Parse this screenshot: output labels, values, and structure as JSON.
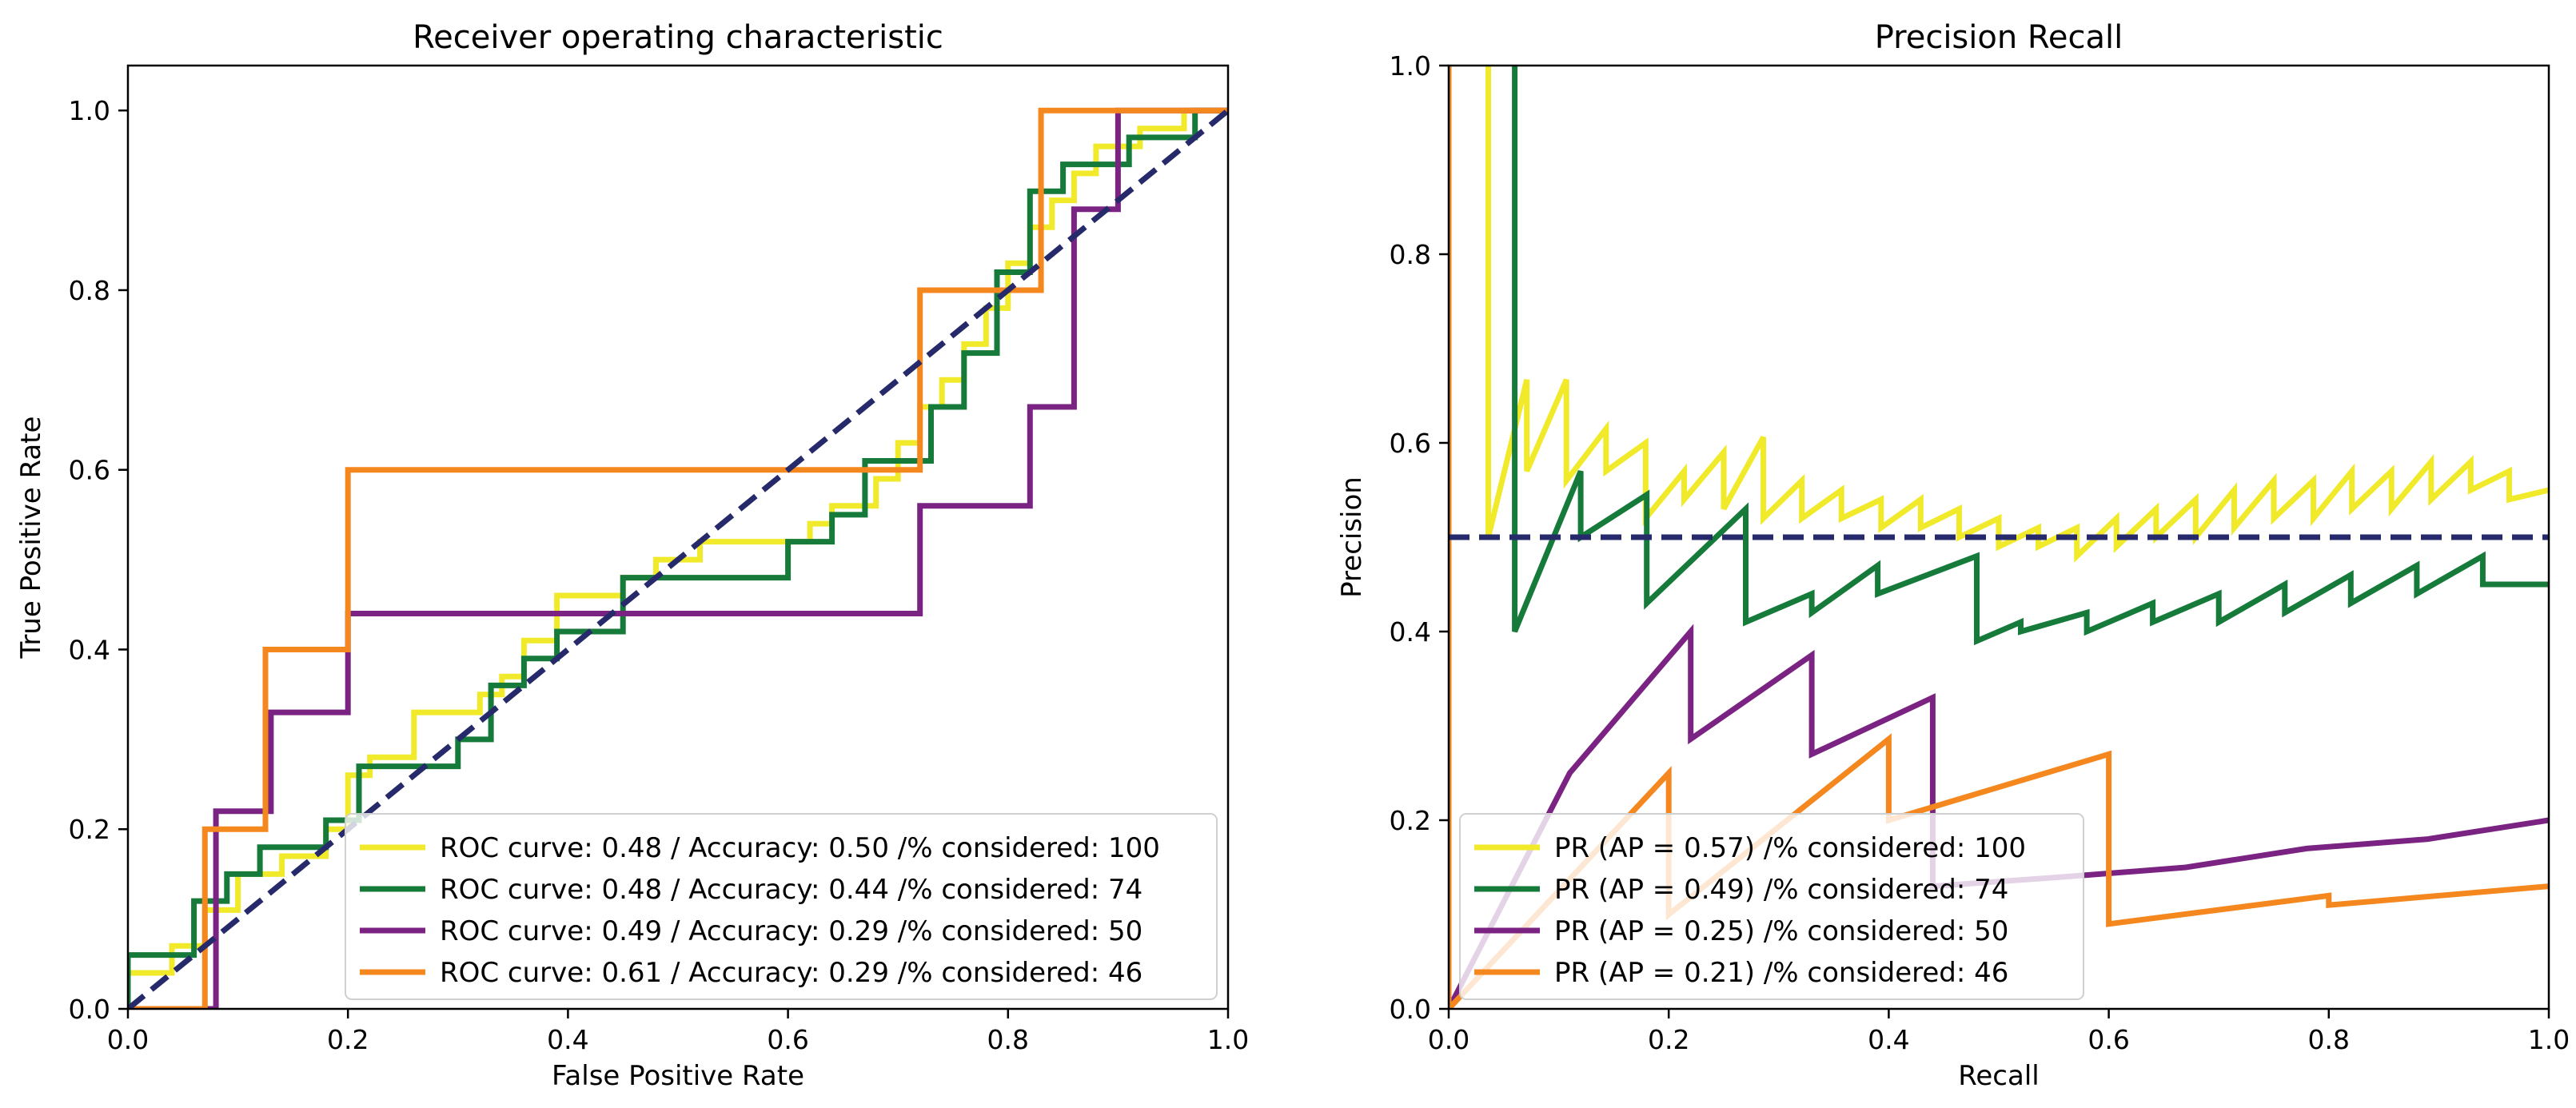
{
  "chart_data": [
    {
      "type": "line",
      "title": "Receiver operating characteristic",
      "xlabel": "False Positive Rate",
      "ylabel": "True Positive Rate",
      "xlim": [
        0.0,
        1.0
      ],
      "ylim": [
        0.0,
        1.05
      ],
      "xticks": [
        "0.0",
        "0.2",
        "0.4",
        "0.6",
        "0.8",
        "1.0"
      ],
      "yticks": [
        "0.0",
        "0.2",
        "0.4",
        "0.6",
        "0.8",
        "1.0"
      ],
      "grid": false,
      "legend_position": "lower-right",
      "reference_line": {
        "name": "chance",
        "color": "#262a6b",
        "style": "dashed",
        "x": [
          0,
          1
        ],
        "y": [
          0,
          1
        ]
      },
      "series": [
        {
          "name": "ROC curve: 0.48 / Accuracy: 0.50 /% considered: 100",
          "color": "#f0ea2a",
          "x": [
            0,
            0,
            0.04,
            0.04,
            0.07,
            0.07,
            0.1,
            0.1,
            0.14,
            0.14,
            0.18,
            0.18,
            0.2,
            0.2,
            0.22,
            0.22,
            0.26,
            0.26,
            0.32,
            0.32,
            0.34,
            0.34,
            0.36,
            0.36,
            0.39,
            0.39,
            0.45,
            0.45,
            0.48,
            0.48,
            0.52,
            0.52,
            0.62,
            0.62,
            0.64,
            0.64,
            0.68,
            0.68,
            0.7,
            0.7,
            0.72,
            0.72,
            0.74,
            0.74,
            0.76,
            0.76,
            0.78,
            0.78,
            0.8,
            0.8,
            0.82,
            0.82,
            0.84,
            0.84,
            0.86,
            0.86,
            0.88,
            0.88,
            0.92,
            0.92,
            0.96,
            0.96,
            1.0
          ],
          "y": [
            0,
            0.04,
            0.04,
            0.07,
            0.07,
            0.11,
            0.11,
            0.15,
            0.15,
            0.17,
            0.17,
            0.2,
            0.2,
            0.26,
            0.26,
            0.28,
            0.28,
            0.33,
            0.33,
            0.35,
            0.35,
            0.37,
            0.37,
            0.41,
            0.41,
            0.46,
            0.46,
            0.48,
            0.48,
            0.5,
            0.5,
            0.52,
            0.52,
            0.54,
            0.54,
            0.56,
            0.56,
            0.59,
            0.59,
            0.63,
            0.63,
            0.67,
            0.67,
            0.7,
            0.7,
            0.74,
            0.74,
            0.78,
            0.78,
            0.83,
            0.83,
            0.87,
            0.87,
            0.9,
            0.9,
            0.93,
            0.93,
            0.96,
            0.96,
            0.98,
            0.98,
            1.0,
            1.0
          ]
        },
        {
          "name": "ROC curve: 0.48 / Accuracy: 0.44 /% considered: 74",
          "color": "#157a3a",
          "x": [
            0,
            0,
            0.06,
            0.06,
            0.09,
            0.09,
            0.12,
            0.12,
            0.18,
            0.18,
            0.21,
            0.21,
            0.3,
            0.3,
            0.33,
            0.33,
            0.36,
            0.36,
            0.39,
            0.39,
            0.45,
            0.45,
            0.6,
            0.6,
            0.64,
            0.64,
            0.67,
            0.67,
            0.73,
            0.73,
            0.76,
            0.76,
            0.79,
            0.79,
            0.82,
            0.82,
            0.85,
            0.85,
            0.91,
            0.91,
            0.97,
            0.97,
            1.0
          ],
          "y": [
            0,
            0.06,
            0.06,
            0.12,
            0.12,
            0.15,
            0.15,
            0.18,
            0.18,
            0.21,
            0.21,
            0.27,
            0.27,
            0.3,
            0.3,
            0.36,
            0.36,
            0.39,
            0.39,
            0.42,
            0.42,
            0.48,
            0.48,
            0.52,
            0.52,
            0.55,
            0.55,
            0.61,
            0.61,
            0.67,
            0.67,
            0.73,
            0.73,
            0.82,
            0.82,
            0.91,
            0.91,
            0.94,
            0.94,
            0.97,
            0.97,
            1.0,
            1.0
          ]
        },
        {
          "name": "ROC curve: 0.49 / Accuracy: 0.29 /% considered: 50",
          "color": "#7a2382",
          "x": [
            0,
            0.08,
            0.08,
            0.13,
            0.13,
            0.2,
            0.2,
            0.72,
            0.72,
            0.82,
            0.82,
            0.86,
            0.86,
            0.9,
            0.9,
            1.0,
            1.0
          ],
          "y": [
            0,
            0,
            0.22,
            0.22,
            0.33,
            0.33,
            0.44,
            0.44,
            0.56,
            0.56,
            0.67,
            0.67,
            0.89,
            0.89,
            1.0,
            1.0,
            1.0
          ],
          "note": "curve rises from 0.56 to 1.0 between x=0.82 and x=0.90"
        },
        {
          "name": "ROC curve: 0.61 / Accuracy: 0.29 /% considered: 46",
          "color": "#f5871f",
          "x": [
            0,
            0.07,
            0.07,
            0.125,
            0.125,
            0.2,
            0.2,
            0.72,
            0.72,
            0.83,
            0.83,
            1.0
          ],
          "y": [
            0,
            0,
            0.2,
            0.2,
            0.4,
            0.4,
            0.6,
            0.6,
            0.8,
            0.8,
            1.0,
            1.0
          ]
        }
      ]
    },
    {
      "type": "line",
      "title": "Precision Recall",
      "xlabel": "Recall",
      "ylabel": "Precision",
      "xlim": [
        0.0,
        1.0
      ],
      "ylim": [
        0.0,
        1.0
      ],
      "xticks": [
        "0.0",
        "0.2",
        "0.4",
        "0.6",
        "0.8",
        "1.0"
      ],
      "yticks": [
        "0.0",
        "0.2",
        "0.4",
        "0.6",
        "0.8",
        "1.0"
      ],
      "grid": false,
      "legend_position": "lower-left",
      "reference_line": {
        "name": "baseline",
        "color": "#262a6b",
        "style": "dashed",
        "x": [
          0,
          1
        ],
        "y": [
          0.5,
          0.5
        ]
      },
      "series": [
        {
          "name": "PR (AP = 0.57) /% considered: 100",
          "color": "#f0ea2a",
          "x": [
            0.036,
            0.036,
            0.071,
            0.071,
            0.107,
            0.107,
            0.143,
            0.143,
            0.179,
            0.179,
            0.214,
            0.214,
            0.25,
            0.25,
            0.286,
            0.286,
            0.321,
            0.321,
            0.357,
            0.357,
            0.393,
            0.393,
            0.429,
            0.429,
            0.464,
            0.464,
            0.5,
            0.5,
            0.536,
            0.536,
            0.571,
            0.571,
            0.607,
            0.607,
            0.643,
            0.643,
            0.679,
            0.679,
            0.714,
            0.714,
            0.75,
            0.75,
            0.786,
            0.786,
            0.821,
            0.821,
            0.857,
            0.857,
            0.893,
            0.893,
            0.929,
            0.929,
            0.964,
            0.964,
            1.0
          ],
          "y": [
            1.0,
            0.5,
            0.667,
            0.57,
            0.667,
            0.56,
            0.615,
            0.57,
            0.6,
            0.52,
            0.57,
            0.54,
            0.59,
            0.53,
            0.606,
            0.52,
            0.56,
            0.52,
            0.55,
            0.52,
            0.54,
            0.51,
            0.54,
            0.51,
            0.53,
            0.5,
            0.52,
            0.49,
            0.51,
            0.49,
            0.51,
            0.48,
            0.52,
            0.49,
            0.53,
            0.5,
            0.54,
            0.5,
            0.55,
            0.51,
            0.56,
            0.52,
            0.56,
            0.52,
            0.57,
            0.53,
            0.57,
            0.53,
            0.58,
            0.54,
            0.58,
            0.55,
            0.57,
            0.54,
            0.55
          ]
        },
        {
          "name": "PR (AP = 0.49) /% considered: 74",
          "color": "#157a3a",
          "x": [
            0.06,
            0.06,
            0.12,
            0.12,
            0.18,
            0.18,
            0.27,
            0.27,
            0.33,
            0.33,
            0.39,
            0.39,
            0.48,
            0.48,
            0.52,
            0.52,
            0.58,
            0.58,
            0.64,
            0.64,
            0.7,
            0.7,
            0.76,
            0.76,
            0.82,
            0.82,
            0.88,
            0.88,
            0.94,
            0.94,
            1.0
          ],
          "y": [
            1.0,
            0.4,
            0.57,
            0.5,
            0.545,
            0.43,
            0.53,
            0.41,
            0.44,
            0.42,
            0.47,
            0.44,
            0.48,
            0.39,
            0.41,
            0.4,
            0.42,
            0.4,
            0.43,
            0.41,
            0.44,
            0.41,
            0.45,
            0.42,
            0.46,
            0.43,
            0.47,
            0.44,
            0.48,
            0.45,
            0.45
          ]
        },
        {
          "name": "PR (AP = 0.25) /% considered: 50",
          "color": "#7a2382",
          "x": [
            0,
            0.11,
            0.22,
            0.22,
            0.33,
            0.33,
            0.44,
            0.44,
            0.56,
            0.56,
            0.67,
            0.67,
            0.78,
            0.78,
            0.89,
            0.89,
            1.0
          ],
          "y": [
            0,
            0.25,
            0.4,
            0.286,
            0.375,
            0.27,
            0.33,
            0.13,
            0.14,
            0.14,
            0.15,
            0.15,
            0.17,
            0.17,
            0.18,
            0.18,
            0.2
          ]
        },
        {
          "name": "PR (AP = 0.21) /% considered: 46",
          "color": "#f5871f",
          "x": [
            0,
            0,
            0,
            0.2,
            0.2,
            0.4,
            0.4,
            0.6,
            0.6,
            0.8,
            0.8,
            1.0
          ],
          "y": [
            1.0,
            0,
            0,
            0.25,
            0.1,
            0.286,
            0.2,
            0.27,
            0.09,
            0.12,
            0.11,
            0.13
          ]
        }
      ]
    }
  ]
}
